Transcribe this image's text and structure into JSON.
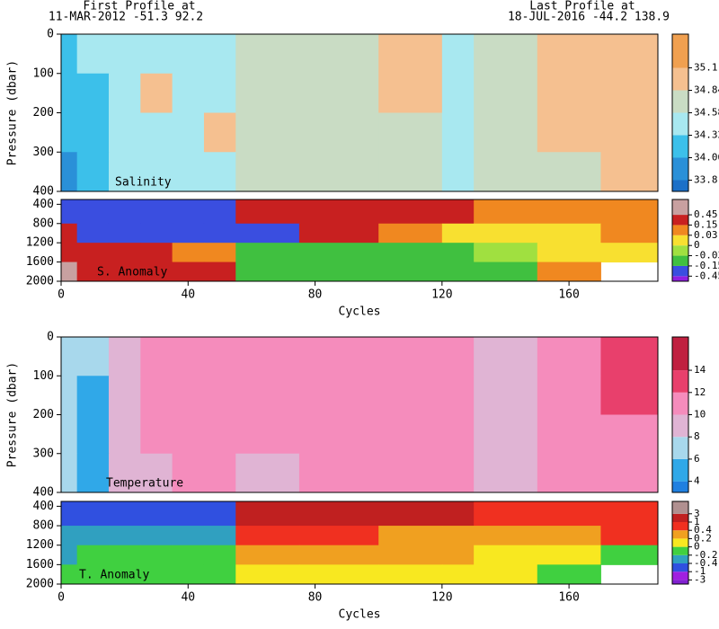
{
  "header": {
    "first_title": "First Profile at",
    "first_info": "11-MAR-2012   -51.3   92.2",
    "last_title": "Last Profile at",
    "last_info": "18-JUL-2016   -44.2  138.9"
  },
  "chart_data": [
    {
      "type": "heatmap",
      "label": "Salinity",
      "ylabel": "Pressure (dbar)",
      "xlim": [
        0,
        188
      ],
      "ylim": [
        0,
        400
      ],
      "yticks": [
        0,
        100,
        200,
        300,
        400
      ],
      "levels": [
        33.8,
        34.06,
        34.32,
        34.58,
        34.84,
        35.1
      ],
      "colors": [
        "#1c70c8",
        "#2a90d8",
        "#3cc0ea",
        "#a8e8f0",
        "#c9dcc4",
        "#f5c090",
        "#f0a050"
      ],
      "x_edges": [
        0,
        5,
        15,
        25,
        35,
        45,
        55,
        75,
        100,
        120,
        130,
        150,
        170,
        188
      ],
      "y_edges": [
        0,
        100,
        200,
        300,
        400
      ],
      "values": [
        [
          34.2,
          34.4,
          34.5,
          34.45,
          34.45,
          34.5,
          34.7,
          34.7,
          34.9,
          34.5,
          34.7,
          34.9,
          34.95
        ],
        [
          34.2,
          34.2,
          34.5,
          34.9,
          34.45,
          34.5,
          34.7,
          34.7,
          34.9,
          34.5,
          34.7,
          34.9,
          34.9
        ],
        [
          34.2,
          34.2,
          34.45,
          34.45,
          34.45,
          34.9,
          34.7,
          34.7,
          34.7,
          34.5,
          34.7,
          34.9,
          34.9
        ],
        [
          34.0,
          34.2,
          34.45,
          34.45,
          34.5,
          34.5,
          34.7,
          34.7,
          34.7,
          34.5,
          34.7,
          34.7,
          34.9
        ]
      ]
    },
    {
      "type": "heatmap",
      "label": "S. Anomaly",
      "xlabel": "Cycles",
      "xlim": [
        0,
        188
      ],
      "xticks": [
        0,
        40,
        80,
        120,
        160
      ],
      "ylim": [
        300,
        2000
      ],
      "yticks": [
        400,
        800,
        1200,
        1600,
        2000
      ],
      "levels": [
        -0.45,
        -0.15,
        -0.03,
        0,
        0.03,
        0.15,
        0.45
      ],
      "colors": [
        "#9020e0",
        "#3a4ee0",
        "#40c040",
        "#a0e040",
        "#f8e030",
        "#f08820",
        "#c82020",
        "#c8a0a0"
      ],
      "x_edges": [
        0,
        5,
        15,
        25,
        35,
        45,
        55,
        75,
        100,
        120,
        130,
        150,
        170,
        188
      ],
      "y_edges": [
        300,
        800,
        1200,
        1600,
        2000
      ],
      "values": [
        [
          -0.2,
          -0.2,
          -0.2,
          -0.2,
          -0.2,
          -0.2,
          0.3,
          0.3,
          0.3,
          0.3,
          0.1,
          0.1,
          0.1
        ],
        [
          0.3,
          -0.2,
          -0.2,
          -0.2,
          -0.2,
          -0.2,
          -0.2,
          0.3,
          0.1,
          0.02,
          0.02,
          0.01,
          0.1
        ],
        [
          0.3,
          0.3,
          0.3,
          0.3,
          0.1,
          0.1,
          -0.1,
          -0.1,
          -0.1,
          -0.1,
          -0.02,
          0.02,
          0.02
        ],
        [
          0.5,
          0.3,
          0.3,
          0.3,
          0.3,
          0.3,
          -0.1,
          -0.1,
          -0.1,
          -0.1,
          -0.1,
          0.1,
          null
        ]
      ]
    },
    {
      "type": "heatmap",
      "label": "Temperature",
      "ylabel": "Pressure (dbar)",
      "xlim": [
        0,
        188
      ],
      "ylim": [
        0,
        400
      ],
      "yticks": [
        0,
        100,
        200,
        300,
        400
      ],
      "levels": [
        4,
        6,
        8,
        10,
        12,
        14
      ],
      "colors": [
        "#2080e0",
        "#30a8e8",
        "#a8d8ec",
        "#e0b4d4",
        "#f58cbc",
        "#e8406c",
        "#c02040"
      ],
      "x_edges": [
        0,
        5,
        15,
        25,
        35,
        45,
        55,
        75,
        100,
        120,
        130,
        150,
        170,
        188
      ],
      "y_edges": [
        0,
        100,
        200,
        300,
        400
      ],
      "values": [
        [
          7,
          7,
          9,
          10,
          11,
          10,
          10,
          11,
          10,
          10,
          9,
          11,
          12.5
        ],
        [
          7,
          5,
          9,
          10,
          10,
          10,
          10,
          10.5,
          10,
          10,
          9,
          10.5,
          12.5
        ],
        [
          7,
          5,
          9,
          10,
          10,
          10,
          10,
          10,
          10,
          10,
          9,
          10,
          11
        ],
        [
          7,
          5,
          9,
          9,
          10,
          10,
          9,
          10,
          10,
          10,
          9,
          10,
          10
        ]
      ]
    },
    {
      "type": "heatmap",
      "label": "T. Anomaly",
      "xlabel": "Cycles",
      "xlim": [
        0,
        188
      ],
      "xticks": [
        0,
        40,
        80,
        120,
        160
      ],
      "ylim": [
        300,
        2000
      ],
      "yticks": [
        400,
        800,
        1200,
        1600,
        2000
      ],
      "levels": [
        -3,
        -1,
        -0.4,
        -0.2,
        0,
        0.2,
        0.4,
        1,
        3
      ],
      "colors": [
        "#8020d0",
        "#a020e0",
        "#3050e0",
        "#30a0c0",
        "#40d040",
        "#f8e820",
        "#f0a020",
        "#f03020",
        "#c02020",
        "#b09090"
      ],
      "x_edges": [
        0,
        5,
        15,
        25,
        35,
        45,
        55,
        75,
        100,
        120,
        130,
        150,
        170,
        188
      ],
      "y_edges": [
        300,
        800,
        1200,
        1600,
        2000
      ],
      "values": [
        [
          -0.5,
          -0.5,
          -0.5,
          -0.5,
          -0.5,
          -0.5,
          2,
          2,
          2,
          2,
          0.6,
          0.6,
          0.6
        ],
        [
          -0.3,
          -0.3,
          -0.3,
          -0.3,
          -0.3,
          -0.3,
          0.6,
          0.6,
          0.3,
          0.3,
          0.3,
          0.3,
          0.6
        ],
        [
          -0.3,
          -0.1,
          -0.1,
          -0.1,
          -0.1,
          -0.1,
          0.3,
          0.3,
          0.3,
          0.3,
          0.1,
          0.1,
          -0.1
        ],
        [
          -0.1,
          -0.1,
          -0.1,
          -0.1,
          -0.1,
          -0.1,
          0.1,
          0.1,
          0.1,
          0.1,
          0.1,
          -0.1,
          null
        ]
      ]
    }
  ]
}
